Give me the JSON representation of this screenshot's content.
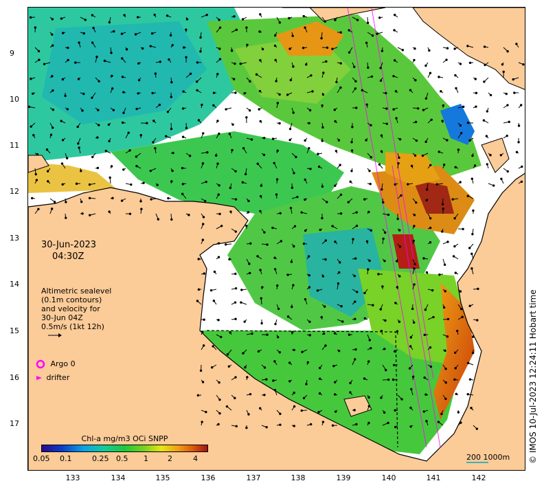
{
  "map": {
    "date": "30-Jun-2023",
    "time": "04:30Z",
    "legend_lines": [
      "Altimetric sealevel",
      "(0.1m contours)",
      "and velocity for",
      "30-Jun 04Z",
      "0.5m/s (1kt 12h)"
    ],
    "argo_label": "Argo 0",
    "drifter_label": "drifter",
    "colorbar_title": "Chl-a mg/m3 OCi SNPP",
    "colorbar_ticks": [
      "0.05",
      "0.1",
      "0.25",
      "0.5",
      "1",
      "2",
      "4"
    ],
    "scale_label": "200  1000m",
    "copyright": "© IMOS 10-Jul-2023 12:24:11 Hobart time",
    "y_ticks": [
      "9",
      "10",
      "11",
      "12",
      "13",
      "14",
      "15",
      "16",
      "17"
    ],
    "x_ticks": [
      "133",
      "134",
      "135",
      "136",
      "137",
      "138",
      "139",
      "140",
      "141",
      "142"
    ],
    "colors": {
      "land": "#fbcb98",
      "argo": "#ff00ff",
      "drifter": "#ff00ff",
      "scale": "#3cb4b4"
    }
  }
}
